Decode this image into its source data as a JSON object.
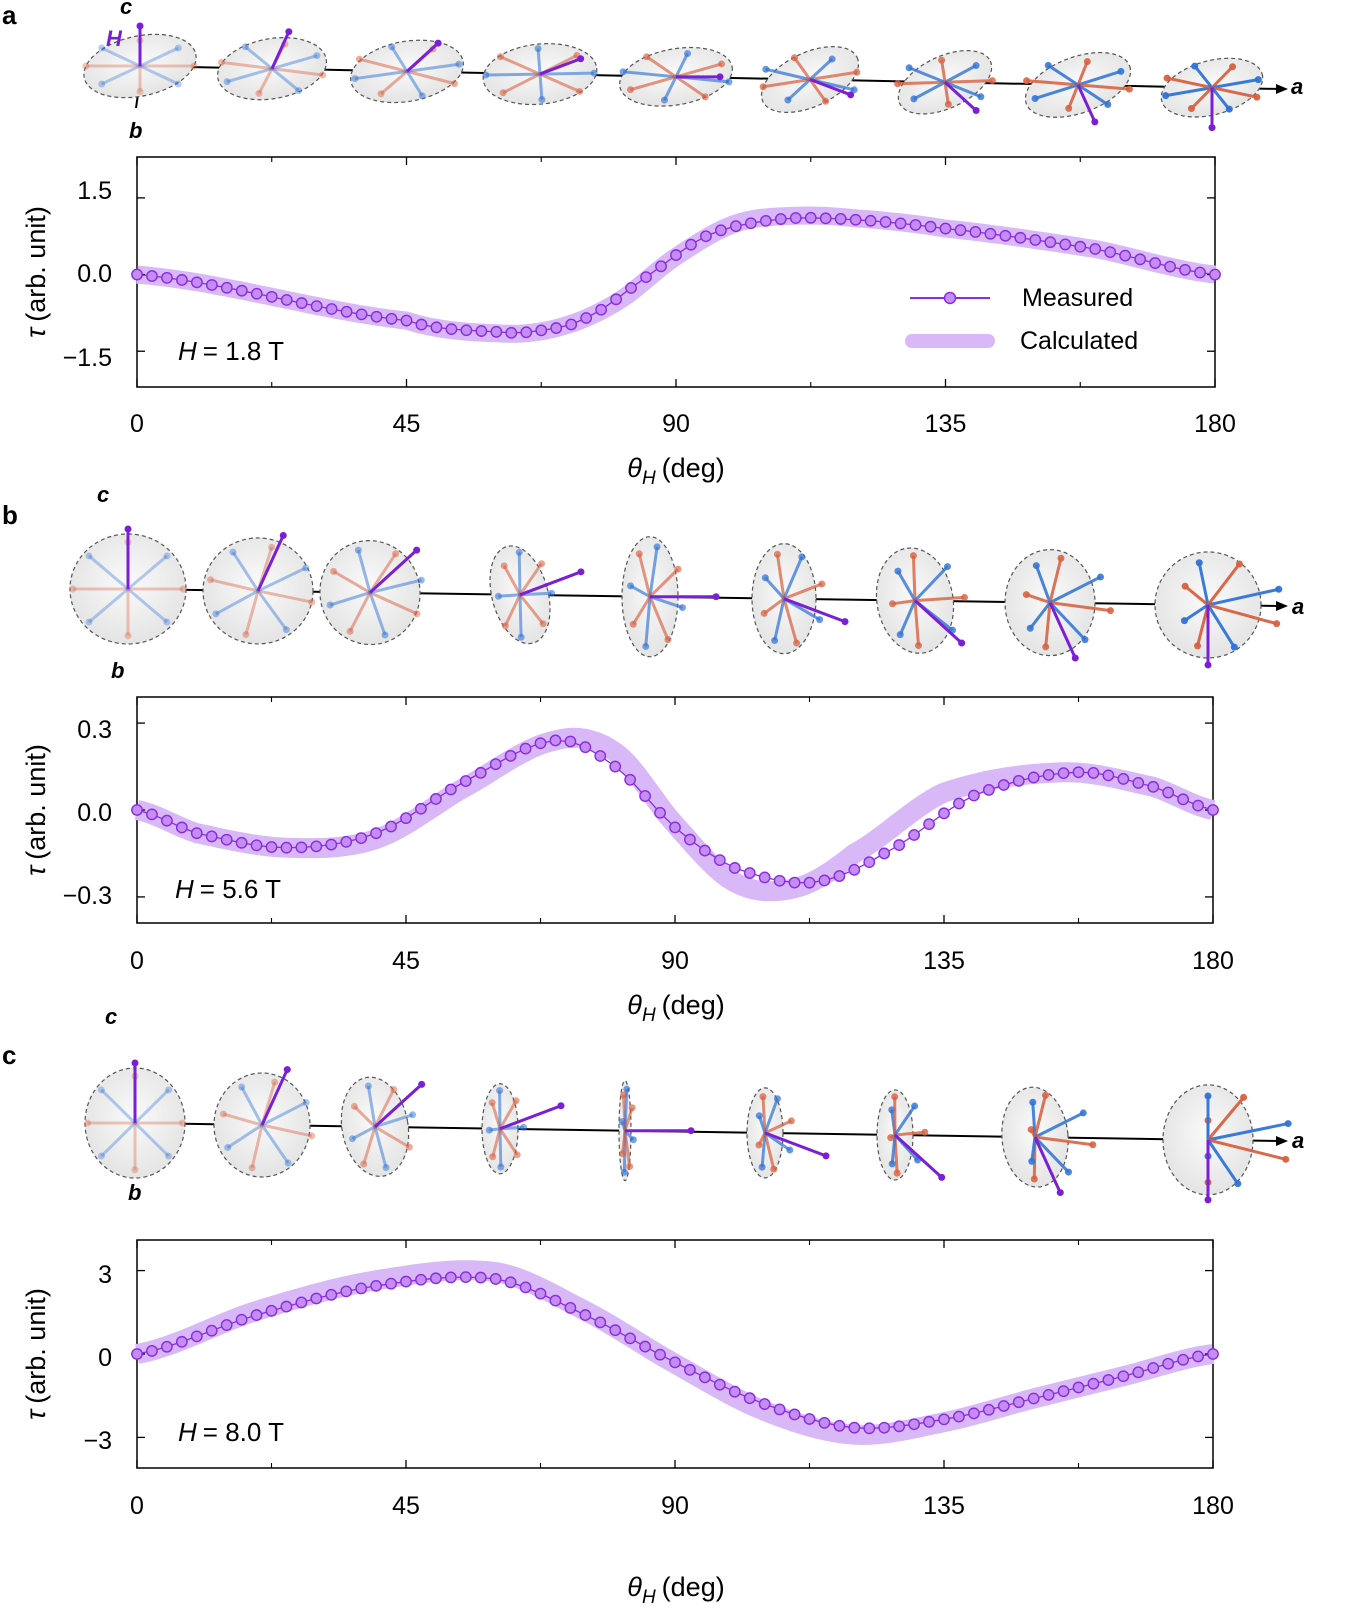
{
  "colors": {
    "measured": "#8b2be2",
    "measured_light": "#c48df2",
    "calculated": "#d9b8f7",
    "spin_red": "#d9603f",
    "spin_blue": "#2f73d6",
    "field": "#7a1fd6"
  },
  "legend": {
    "measured": "Measured",
    "calculated": "Calculated"
  },
  "axis_names": {
    "a": "a",
    "b": "b",
    "c": "c",
    "h": "H"
  },
  "chart_data": [
    {
      "panel": "a",
      "type": "line",
      "title": "",
      "field_label": "H",
      "field_value": "= 1.8 T",
      "xlabel_sym": "θ",
      "xlabel_sub": "H",
      "xlabel_unit": "(deg)",
      "ylabel_sym": "τ",
      "ylabel_unit": "(arb. unit)",
      "xlim": [
        0,
        180
      ],
      "ylim": [
        -2.2,
        2.3
      ],
      "xticks": [
        0,
        45,
        90,
        135,
        180
      ],
      "xtick_labels": [
        "0",
        "45",
        "90",
        "135",
        "180"
      ],
      "yticks": [
        1.5,
        0.0,
        -1.5
      ],
      "ytick_labels": [
        "1.5",
        "0.0",
        "−1.5"
      ],
      "show_legend": true,
      "measured": {
        "x": [
          0,
          45,
          60,
          67,
          75,
          85,
          95,
          105,
          115,
          135,
          160,
          180
        ],
        "y": [
          0.0,
          -0.9,
          -1.12,
          -1.1,
          -0.85,
          -0.05,
          0.75,
          1.05,
          1.1,
          0.9,
          0.5,
          0.0
        ]
      },
      "calculated": {
        "x": [
          0,
          45,
          60,
          70,
          80,
          90,
          100,
          110,
          120,
          135,
          160,
          180
        ],
        "y": [
          0.0,
          -0.9,
          -1.15,
          -1.05,
          -0.55,
          0.35,
          1.0,
          1.15,
          1.1,
          0.9,
          0.5,
          0.0
        ]
      }
    },
    {
      "panel": "b",
      "type": "line",
      "title": "",
      "field_label": "H",
      "field_value": "= 5.6 T",
      "xlabel_sym": "θ",
      "xlabel_sub": "H",
      "xlabel_unit": "(deg)",
      "ylabel_sym": "τ",
      "ylabel_unit": "(arb. unit)",
      "xlim": [
        0,
        180
      ],
      "ylim": [
        -0.39,
        0.39
      ],
      "xticks": [
        0,
        45,
        90,
        135,
        180
      ],
      "xtick_labels": [
        "0",
        "45",
        "90",
        "135",
        "180"
      ],
      "yticks": [
        0.3,
        0.0,
        -0.3
      ],
      "ytick_labels": [
        "0.3",
        "0.0",
        "−0.3"
      ],
      "show_legend": false,
      "measured": {
        "x": [
          0,
          10,
          25,
          40,
          55,
          70,
          80,
          90,
          100,
          113,
          125,
          140,
          157,
          170,
          180
        ],
        "y": [
          0.0,
          -0.08,
          -0.13,
          -0.08,
          0.1,
          0.24,
          0.15,
          -0.06,
          -0.2,
          -0.25,
          -0.15,
          0.05,
          0.13,
          0.08,
          0.0
        ]
      },
      "calculated": {
        "x": [
          0,
          10,
          25,
          40,
          55,
          70,
          80,
          90,
          100,
          110,
          120,
          135,
          155,
          170,
          180
        ],
        "y": [
          0.0,
          -0.08,
          -0.13,
          -0.1,
          0.08,
          0.24,
          0.2,
          -0.05,
          -0.25,
          -0.27,
          -0.15,
          0.06,
          0.13,
          0.08,
          0.0
        ]
      }
    },
    {
      "panel": "c",
      "type": "line",
      "title": "",
      "field_label": "H",
      "field_value": "= 8.0 T",
      "xlabel_sym": "θ",
      "xlabel_sub": "H",
      "xlabel_unit": "(deg)",
      "ylabel_sym": "τ",
      "ylabel_unit": "(arb. unit)",
      "xlim": [
        0,
        180
      ],
      "ylim": [
        -4.1,
        4.1
      ],
      "xticks": [
        0,
        45,
        90,
        135,
        180
      ],
      "xtick_labels": [
        "0",
        "45",
        "90",
        "135",
        "180"
      ],
      "yticks": [
        3,
        0,
        -3
      ],
      "ytick_labels": [
        "3",
        "0",
        "−3"
      ],
      "show_legend": false,
      "measured": {
        "x": [
          0,
          20,
          40,
          60,
          75,
          90,
          105,
          120,
          135,
          150,
          165,
          180
        ],
        "y": [
          0.0,
          1.4,
          2.45,
          2.7,
          1.4,
          -0.3,
          -1.8,
          -2.65,
          -2.35,
          -1.6,
          -0.8,
          0.0
        ]
      },
      "calculated": {
        "x": [
          0,
          20,
          40,
          60,
          75,
          90,
          105,
          120,
          135,
          150,
          165,
          180
        ],
        "y": [
          0.0,
          1.55,
          2.65,
          2.95,
          1.55,
          -0.35,
          -2.05,
          -2.9,
          -2.45,
          -1.6,
          -0.8,
          0.0
        ]
      }
    }
  ]
}
